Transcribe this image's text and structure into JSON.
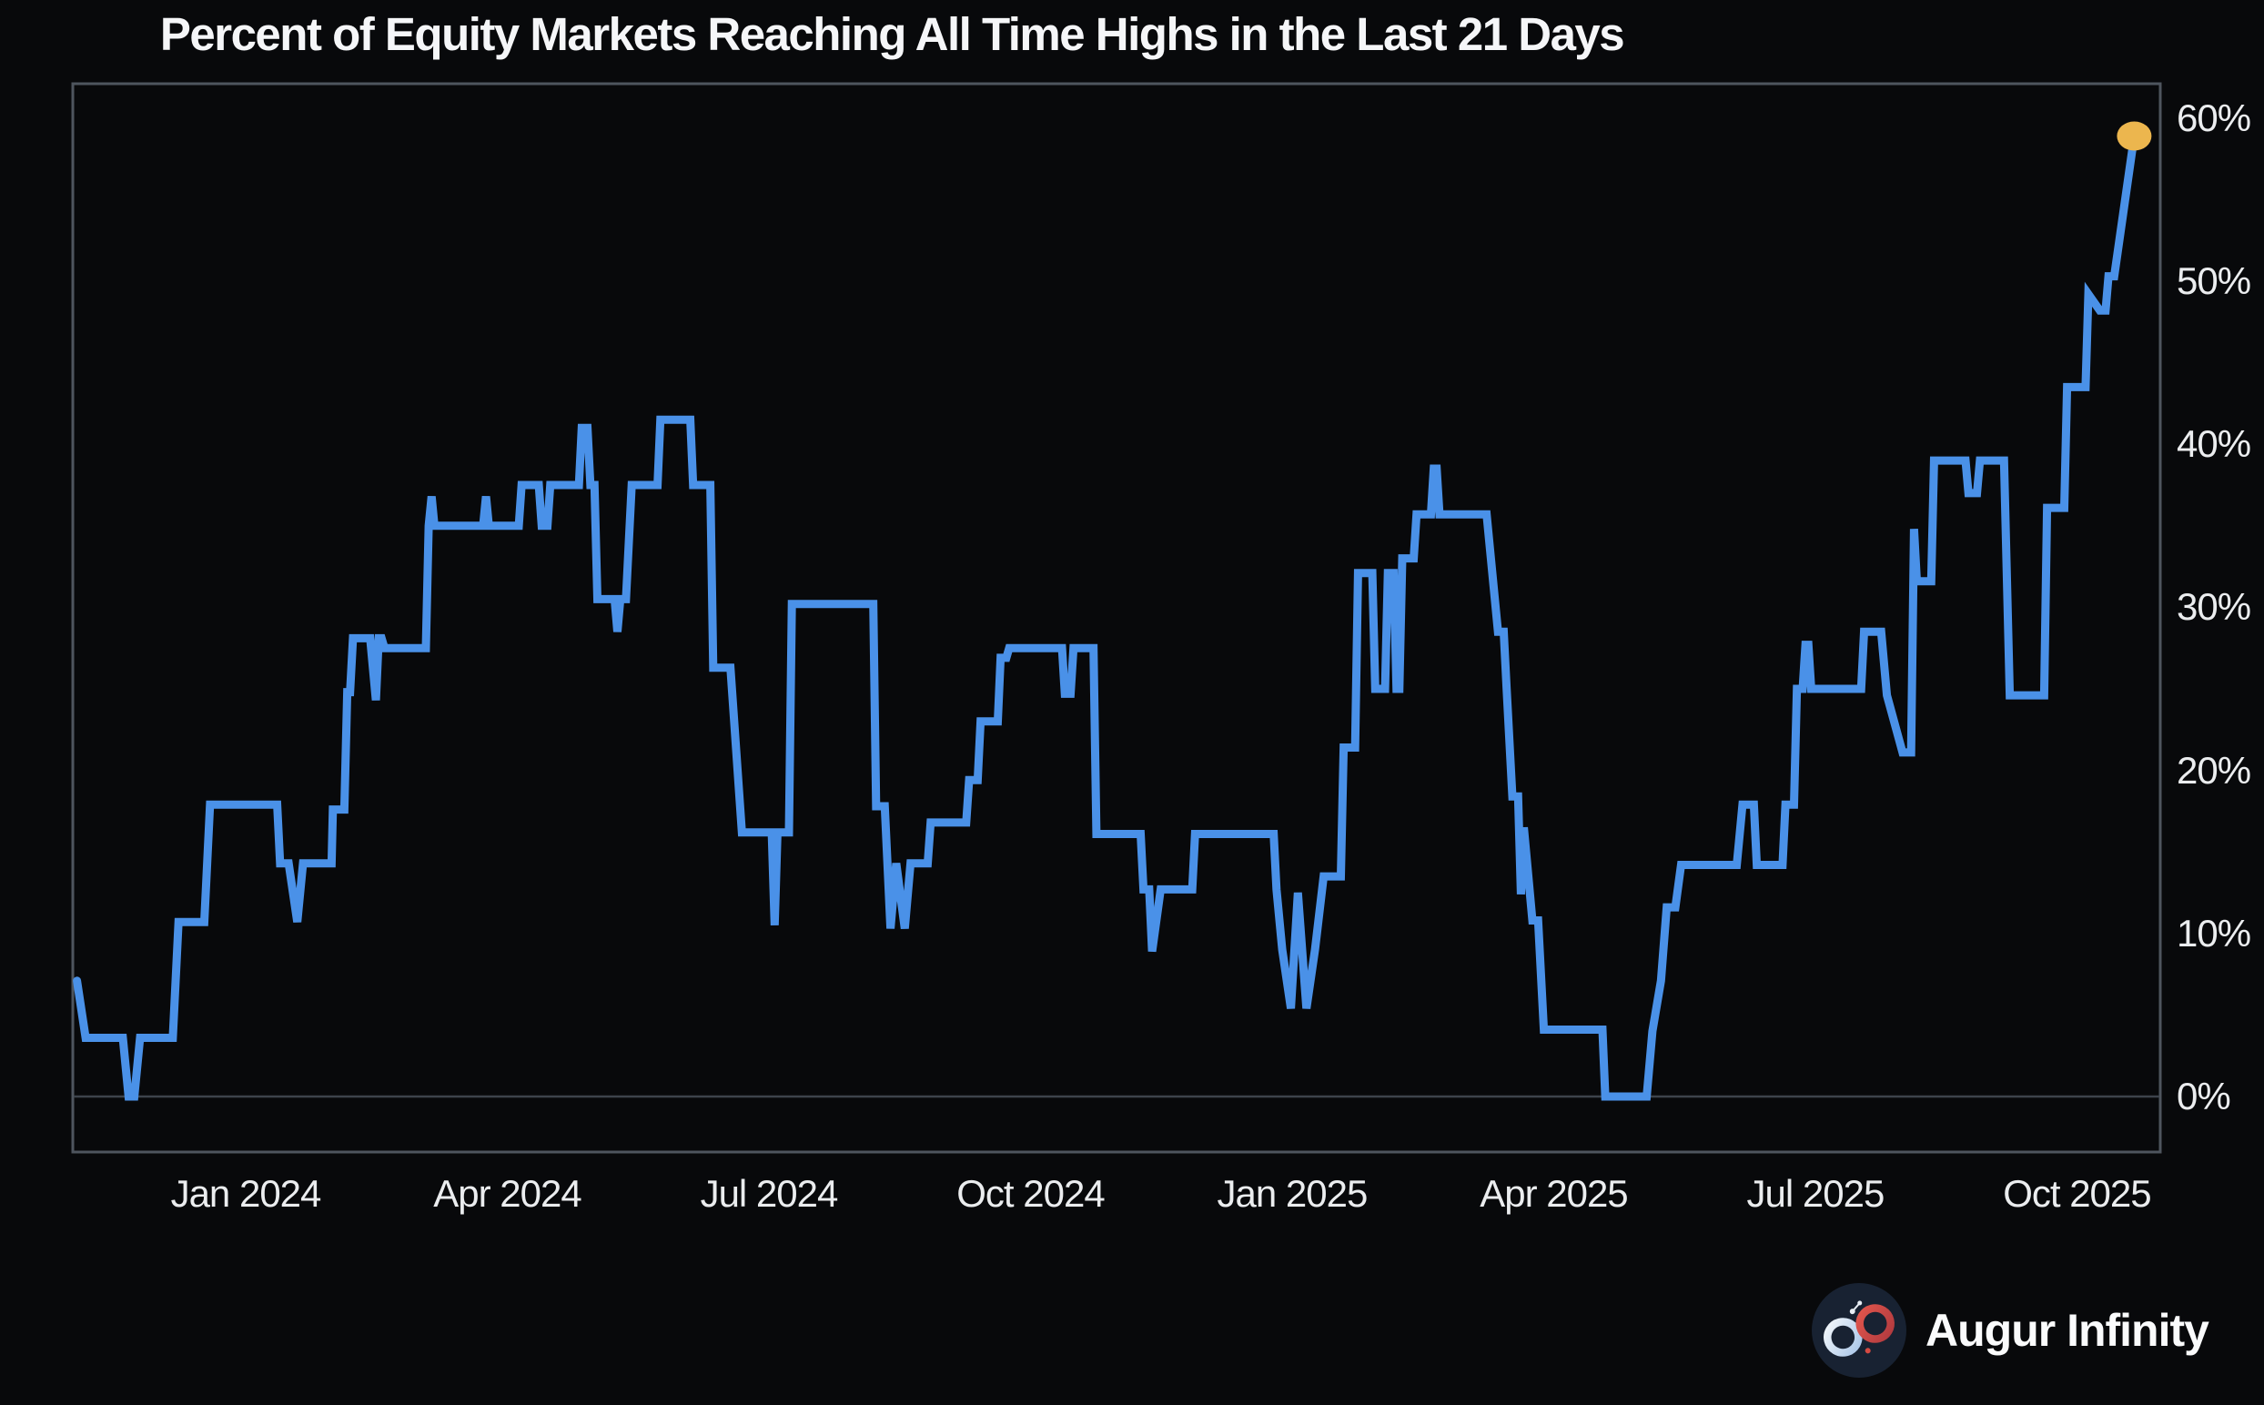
{
  "title": "Percent of Equity Markets Reaching All Time Highs in the Last 21 Days",
  "brand": {
    "name": "Augur Infinity"
  },
  "colors": {
    "background": "#08090b",
    "line": "#4a91e8",
    "marker": "#ecb64e",
    "frame": "#4e555e",
    "zero_line": "#3d434b",
    "text": "#ebedef",
    "title_text": "#f5f6f8",
    "logo_circle": "#182232",
    "logo_left_loop": "#dce9f5",
    "logo_right_loop": "#d64a42"
  },
  "icons": {
    "logo": "infinity-icon"
  },
  "chart_data": {
    "type": "line",
    "title": "Percent of Equity Markets Reaching All Time Highs in the Last 21 Days",
    "xlabel": "",
    "ylabel": "",
    "legend": false,
    "grid": "zero-line-only",
    "ylim": [
      0,
      62
    ],
    "x_range": [
      "2023-11-03",
      "2025-11-04"
    ],
    "y_axis_side": "right",
    "y_ticks": [
      {
        "label": "0%",
        "v": 0
      },
      {
        "label": "10%",
        "v": 10
      },
      {
        "label": "20%",
        "v": 20
      },
      {
        "label": "30%",
        "v": 30
      },
      {
        "label": "40%",
        "v": 40
      },
      {
        "label": "50%",
        "v": 50
      },
      {
        "label": "60%",
        "v": 60
      }
    ],
    "x_ticks": [
      {
        "label": "Jan 2024",
        "m": 0
      },
      {
        "label": "Apr 2024",
        "m": 3
      },
      {
        "label": "Jul 2024",
        "m": 6
      },
      {
        "label": "Oct 2024",
        "m": 9
      },
      {
        "label": "Jan 2025",
        "m": 12
      },
      {
        "label": "Apr 2025",
        "m": 15
      },
      {
        "label": "Jul 2025",
        "m": 18
      },
      {
        "label": "Oct 2025",
        "m": 21
      }
    ],
    "end_marker": {
      "date": "2025-10-21",
      "value": 58.9
    },
    "series": [
      {
        "name": "pct-markets-at-ath-21d",
        "points": [
          [
            "2023-11-03",
            7.1
          ],
          [
            "2023-11-06",
            3.6
          ],
          [
            "2023-11-19",
            3.6
          ],
          [
            "2023-11-21",
            0
          ],
          [
            "2023-11-23",
            0
          ],
          [
            "2023-11-25",
            3.6
          ],
          [
            "2023-12-06",
            3.6
          ],
          [
            "2023-12-08",
            10.7
          ],
          [
            "2023-12-17",
            10.7
          ],
          [
            "2023-12-19",
            17.9
          ],
          [
            "2024-01-12",
            17.9
          ],
          [
            "2024-01-13",
            14.3
          ],
          [
            "2024-01-16",
            14.3
          ],
          [
            "2024-01-19",
            10.7
          ],
          [
            "2024-01-21",
            14.3
          ],
          [
            "2024-01-31",
            14.3
          ],
          [
            "2024-02-01",
            17.6
          ],
          [
            "2024-02-05",
            17.6
          ],
          [
            "2024-02-06",
            24.8
          ],
          [
            "2024-02-07",
            24.8
          ],
          [
            "2024-02-08",
            28.1
          ],
          [
            "2024-02-14",
            28.1
          ],
          [
            "2024-02-16",
            24.3
          ],
          [
            "2024-02-17",
            28.1
          ],
          [
            "2024-02-18",
            28.1
          ],
          [
            "2024-02-19",
            27.5
          ],
          [
            "2024-03-03",
            27.5
          ],
          [
            "2024-03-04",
            35.0
          ],
          [
            "2024-03-05",
            36.8
          ],
          [
            "2024-03-06",
            35.0
          ],
          [
            "2024-03-23",
            35.0
          ],
          [
            "2024-03-24",
            36.8
          ],
          [
            "2024-03-25",
            35.0
          ],
          [
            "2024-04-05",
            35.0
          ],
          [
            "2024-04-06",
            37.5
          ],
          [
            "2024-04-12",
            37.5
          ],
          [
            "2024-04-13",
            35.0
          ],
          [
            "2024-04-15",
            35.0
          ],
          [
            "2024-04-16",
            37.5
          ],
          [
            "2024-04-26",
            37.5
          ],
          [
            "2024-04-27",
            41.0
          ],
          [
            "2024-04-29",
            41.0
          ],
          [
            "2024-04-30",
            37.5
          ],
          [
            "2024-05-01",
            37.5
          ],
          [
            "2024-05-02",
            30.5
          ],
          [
            "2024-05-08",
            30.5
          ],
          [
            "2024-05-09",
            28.5
          ],
          [
            "2024-05-10",
            30.5
          ],
          [
            "2024-05-12",
            30.5
          ],
          [
            "2024-05-14",
            37.5
          ],
          [
            "2024-05-23",
            37.5
          ],
          [
            "2024-05-24",
            41.5
          ],
          [
            "2024-06-04",
            41.5
          ],
          [
            "2024-06-05",
            37.5
          ],
          [
            "2024-06-11",
            37.5
          ],
          [
            "2024-06-12",
            26.3
          ],
          [
            "2024-06-18",
            26.3
          ],
          [
            "2024-06-22",
            16.2
          ],
          [
            "2024-07-02",
            16.2
          ],
          [
            "2024-07-03",
            10.5
          ],
          [
            "2024-07-04",
            16.2
          ],
          [
            "2024-07-08",
            16.2
          ],
          [
            "2024-07-09",
            30.2
          ],
          [
            "2024-08-07",
            30.2
          ],
          [
            "2024-08-08",
            17.8
          ],
          [
            "2024-08-11",
            17.8
          ],
          [
            "2024-08-13",
            10.3
          ],
          [
            "2024-08-15",
            14.3
          ],
          [
            "2024-08-18",
            10.3
          ],
          [
            "2024-08-20",
            14.3
          ],
          [
            "2024-08-26",
            14.3
          ],
          [
            "2024-08-27",
            16.8
          ],
          [
            "2024-09-09",
            16.8
          ],
          [
            "2024-09-10",
            19.4
          ],
          [
            "2024-09-13",
            19.4
          ],
          [
            "2024-09-14",
            23.0
          ],
          [
            "2024-09-20",
            23.0
          ],
          [
            "2024-09-21",
            26.9
          ],
          [
            "2024-09-23",
            26.9
          ],
          [
            "2024-09-24",
            27.5
          ],
          [
            "2024-10-12",
            27.5
          ],
          [
            "2024-10-13",
            24.7
          ],
          [
            "2024-10-15",
            24.7
          ],
          [
            "2024-10-16",
            27.5
          ],
          [
            "2024-10-23",
            27.5
          ],
          [
            "2024-10-24",
            16.1
          ],
          [
            "2024-11-09",
            16.1
          ],
          [
            "2024-11-10",
            12.7
          ],
          [
            "2024-11-12",
            12.7
          ],
          [
            "2024-11-13",
            8.9
          ],
          [
            "2024-11-16",
            12.7
          ],
          [
            "2024-11-27",
            12.7
          ],
          [
            "2024-11-28",
            16.1
          ],
          [
            "2024-12-25",
            16.1
          ],
          [
            "2024-12-26",
            12.7
          ],
          [
            "2024-12-28",
            9.0
          ],
          [
            "2024-12-31",
            5.4
          ],
          [
            "2025-01-03",
            12.5
          ],
          [
            "2025-01-06",
            5.4
          ],
          [
            "2025-01-09",
            9.0
          ],
          [
            "2025-01-12",
            13.5
          ],
          [
            "2025-01-18",
            13.5
          ],
          [
            "2025-01-19",
            21.4
          ],
          [
            "2025-01-23",
            21.4
          ],
          [
            "2025-01-24",
            32.1
          ],
          [
            "2025-01-29",
            32.1
          ],
          [
            "2025-01-30",
            25.0
          ],
          [
            "2025-02-03",
            25.0
          ],
          [
            "2025-02-04",
            32.1
          ],
          [
            "2025-02-06",
            32.1
          ],
          [
            "2025-02-07",
            25.0
          ],
          [
            "2025-02-08",
            25.0
          ],
          [
            "2025-02-09",
            33.0
          ],
          [
            "2025-02-13",
            33.0
          ],
          [
            "2025-02-14",
            35.7
          ],
          [
            "2025-02-19",
            35.7
          ],
          [
            "2025-02-20",
            38.5
          ],
          [
            "2025-02-21",
            38.5
          ],
          [
            "2025-02-22",
            35.7
          ],
          [
            "2025-03-08",
            35.7
          ],
          [
            "2025-03-12",
            28.5
          ],
          [
            "2025-03-14",
            28.5
          ],
          [
            "2025-03-15",
            25.0
          ],
          [
            "2025-03-17",
            18.4
          ],
          [
            "2025-03-19",
            18.4
          ],
          [
            "2025-03-20",
            12.4
          ],
          [
            "2025-03-21",
            16.5
          ],
          [
            "2025-03-24",
            10.8
          ],
          [
            "2025-03-26",
            10.8
          ],
          [
            "2025-03-28",
            4.1
          ],
          [
            "2025-04-18",
            4.1
          ],
          [
            "2025-04-19",
            0
          ],
          [
            "2025-05-03",
            0
          ],
          [
            "2025-05-05",
            4.0
          ],
          [
            "2025-05-08",
            7.1
          ],
          [
            "2025-05-10",
            11.6
          ],
          [
            "2025-05-13",
            11.6
          ],
          [
            "2025-05-15",
            14.2
          ],
          [
            "2025-06-04",
            14.2
          ],
          [
            "2025-06-06",
            17.9
          ],
          [
            "2025-06-10",
            17.9
          ],
          [
            "2025-06-11",
            14.2
          ],
          [
            "2025-06-20",
            14.2
          ],
          [
            "2025-06-21",
            17.9
          ],
          [
            "2025-06-24",
            17.9
          ],
          [
            "2025-06-25",
            25.0
          ],
          [
            "2025-06-27",
            25.0
          ],
          [
            "2025-06-28",
            27.7
          ],
          [
            "2025-06-29",
            27.7
          ],
          [
            "2025-06-30",
            25.0
          ],
          [
            "2025-07-17",
            25.0
          ],
          [
            "2025-07-18",
            28.5
          ],
          [
            "2025-07-24",
            28.5
          ],
          [
            "2025-07-26",
            24.6
          ],
          [
            "2025-08-01",
            21.1
          ],
          [
            "2025-08-04",
            21.1
          ],
          [
            "2025-08-05",
            34.8
          ],
          [
            "2025-08-06",
            31.6
          ],
          [
            "2025-08-11",
            31.6
          ],
          [
            "2025-08-12",
            39.0
          ],
          [
            "2025-08-23",
            39.0
          ],
          [
            "2025-08-24",
            37.0
          ],
          [
            "2025-08-27",
            37.0
          ],
          [
            "2025-08-28",
            39.0
          ],
          [
            "2025-09-06",
            39.0
          ],
          [
            "2025-09-08",
            24.6
          ],
          [
            "2025-09-20",
            24.6
          ],
          [
            "2025-09-21",
            36.1
          ],
          [
            "2025-09-27",
            36.1
          ],
          [
            "2025-09-28",
            43.5
          ],
          [
            "2025-10-04",
            43.5
          ],
          [
            "2025-10-05",
            49.2
          ],
          [
            "2025-10-09",
            48.2
          ],
          [
            "2025-10-11",
            48.2
          ],
          [
            "2025-10-12",
            50.3
          ],
          [
            "2025-10-14",
            50.3
          ],
          [
            "2025-10-21",
            58.9
          ]
        ]
      }
    ]
  }
}
